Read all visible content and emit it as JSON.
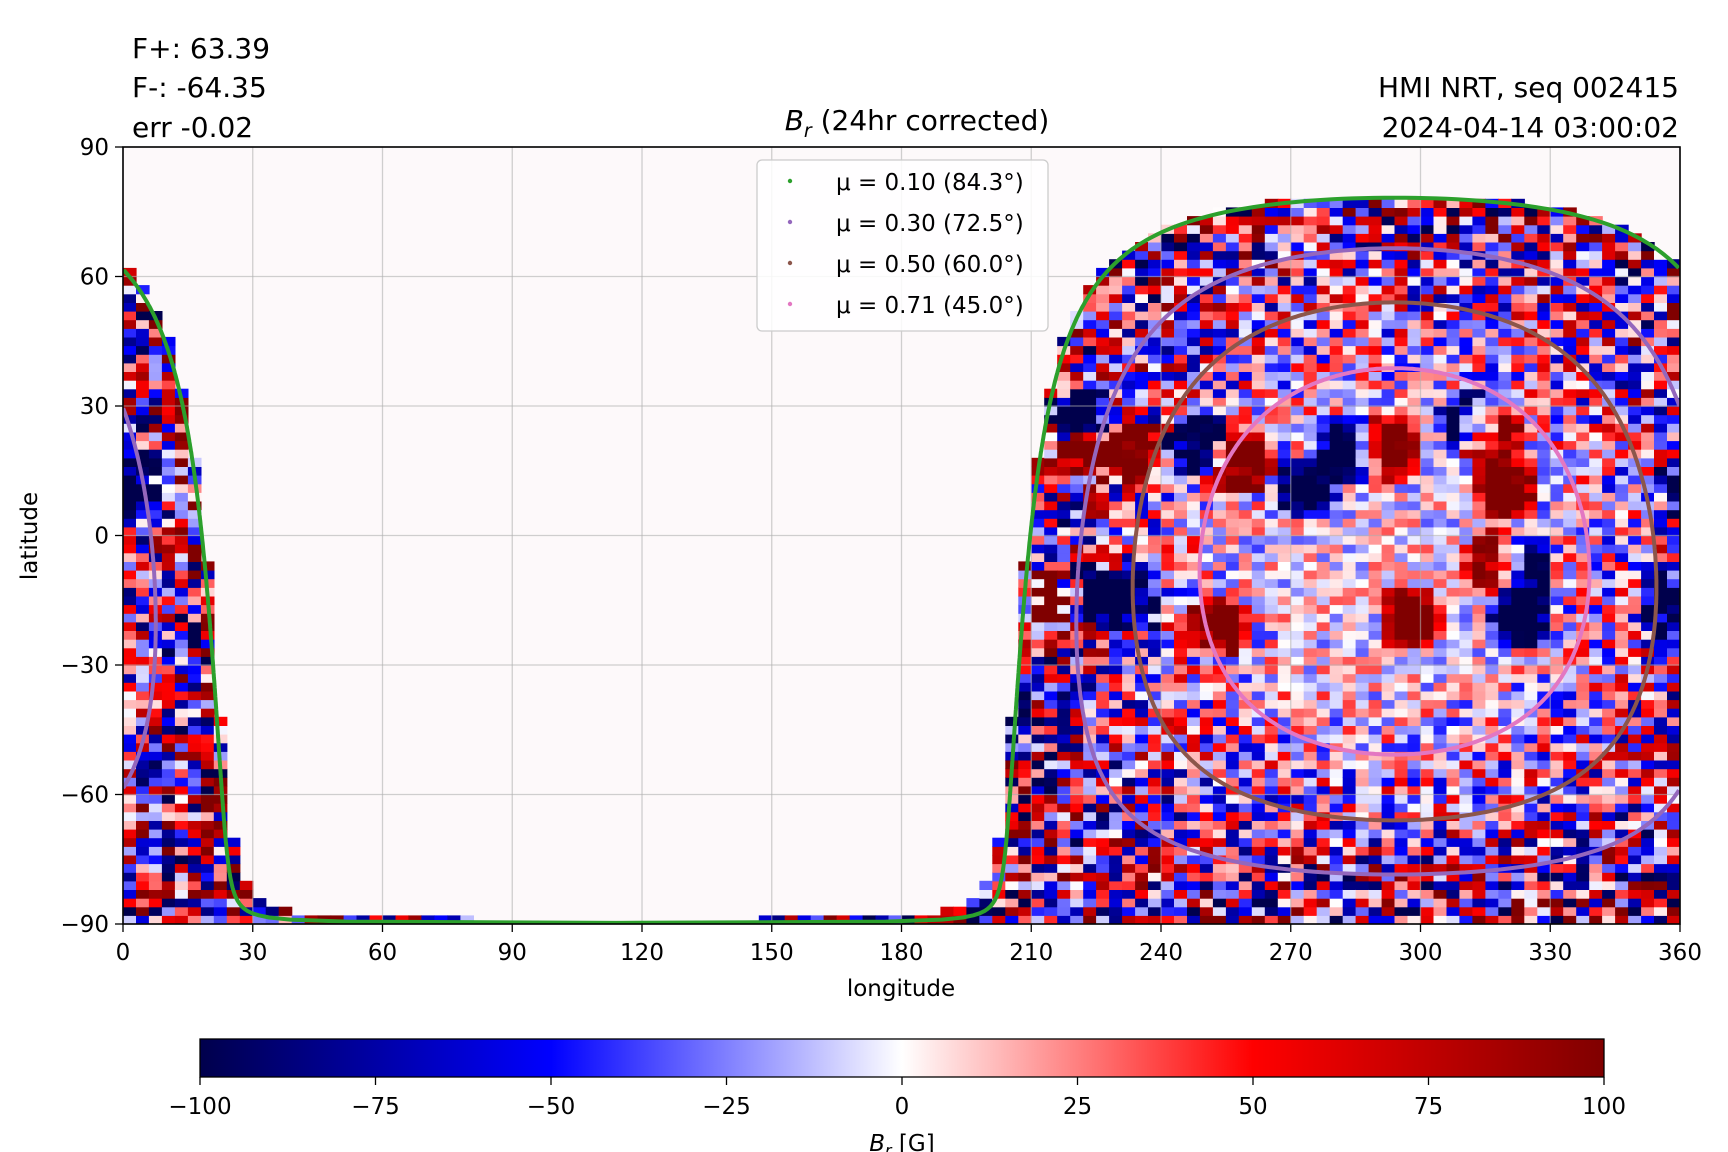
{
  "header": {
    "flux_pos": "F+: 63.39",
    "flux_neg": "F-: -64.35",
    "flux_err": "err -0.02",
    "source": "HMI NRT, seq 002415",
    "timestamp": "2024-04-14 03:00:02"
  },
  "chart_data": {
    "type": "heatmap",
    "title": "B_r (24hr corrected)",
    "title_parts": {
      "symbol": "B",
      "sub": "r",
      "rest": " (24hr corrected)"
    },
    "xlabel": "longitude",
    "ylabel": "latitude",
    "xlim": [
      0,
      360
    ],
    "ylim": [
      -90,
      90
    ],
    "xticks": [
      0,
      30,
      60,
      90,
      120,
      150,
      180,
      210,
      240,
      270,
      300,
      330,
      360
    ],
    "yticks": [
      -90,
      -60,
      -30,
      0,
      30,
      60,
      90
    ],
    "ytick_labels": [
      "−90",
      "−60",
      "−30",
      "0",
      "30",
      "60",
      "90"
    ],
    "grid": true,
    "legend_position": "top-center",
    "disk_center": {
      "lon": 294,
      "lat": -6
    },
    "series": [
      {
        "name": "μ = 0.10 (84.3°)",
        "mu": 0.1,
        "angle_deg": 84.3,
        "color": "#2ca02c"
      },
      {
        "name": "μ = 0.30 (72.5°)",
        "mu": 0.3,
        "angle_deg": 72.5,
        "color": "#9467bd"
      },
      {
        "name": "μ = 0.50 (60.0°)",
        "mu": 0.5,
        "angle_deg": 60.0,
        "color": "#8c564b"
      },
      {
        "name": "μ = 0.71 (45.0°)",
        "mu": 0.71,
        "angle_deg": 45.0,
        "color": "#e377c2"
      }
    ],
    "active_regions": [
      {
        "lon": 220,
        "lat": 28,
        "sign": -1
      },
      {
        "lon": 222,
        "lat": 18,
        "sign": 1
      },
      {
        "lon": 232,
        "lat": 18,
        "sign": 1
      },
      {
        "lon": 247,
        "lat": 20,
        "sign": -1
      },
      {
        "lon": 257,
        "lat": 16,
        "sign": 1
      },
      {
        "lon": 282,
        "lat": 19,
        "sign": -1
      },
      {
        "lon": 291,
        "lat": 19,
        "sign": 1
      },
      {
        "lon": 310,
        "lat": 26,
        "sign": -1
      },
      {
        "lon": 314,
        "lat": 23,
        "sign": 1
      },
      {
        "lon": 272,
        "lat": 10,
        "sign": -1
      },
      {
        "lon": 318,
        "lat": 10,
        "sign": 1
      },
      {
        "lon": 360,
        "lat": 10,
        "sign": -1
      },
      {
        "lon": 2,
        "lat": 9,
        "sign": -1
      },
      {
        "lon": 10,
        "lat": 22,
        "sign": 1
      },
      {
        "lon": 4,
        "lat": 20,
        "sign": -1
      },
      {
        "lon": 214,
        "lat": -14,
        "sign": 1
      },
      {
        "lon": 222,
        "lat": -14,
        "sign": -1
      },
      {
        "lon": 232,
        "lat": -16,
        "sign": -1
      },
      {
        "lon": 252,
        "lat": -22,
        "sign": 1
      },
      {
        "lon": 316,
        "lat": -7,
        "sign": 1
      },
      {
        "lon": 322,
        "lat": -8,
        "sign": -1
      },
      {
        "lon": 296,
        "lat": -20,
        "sign": 1
      },
      {
        "lon": 322,
        "lat": -20,
        "sign": -1
      },
      {
        "lon": 356,
        "lat": -17,
        "sign": -1
      }
    ],
    "colorbar": {
      "label": "B_r [G]",
      "label_parts": {
        "symbol": "B",
        "sub": "r",
        "rest": " [G]"
      },
      "range": [
        -100,
        100
      ],
      "ticks": [
        -100,
        -75,
        -50,
        -25,
        0,
        25,
        50,
        75,
        100
      ],
      "tick_labels": [
        "−100",
        "−75",
        "−50",
        "−25",
        "0",
        "25",
        "50",
        "75",
        "100"
      ],
      "colormap": "seismic",
      "stops": [
        "#00004c",
        "#0000ff",
        "#ffffff",
        "#ff0000",
        "#800000"
      ]
    }
  }
}
